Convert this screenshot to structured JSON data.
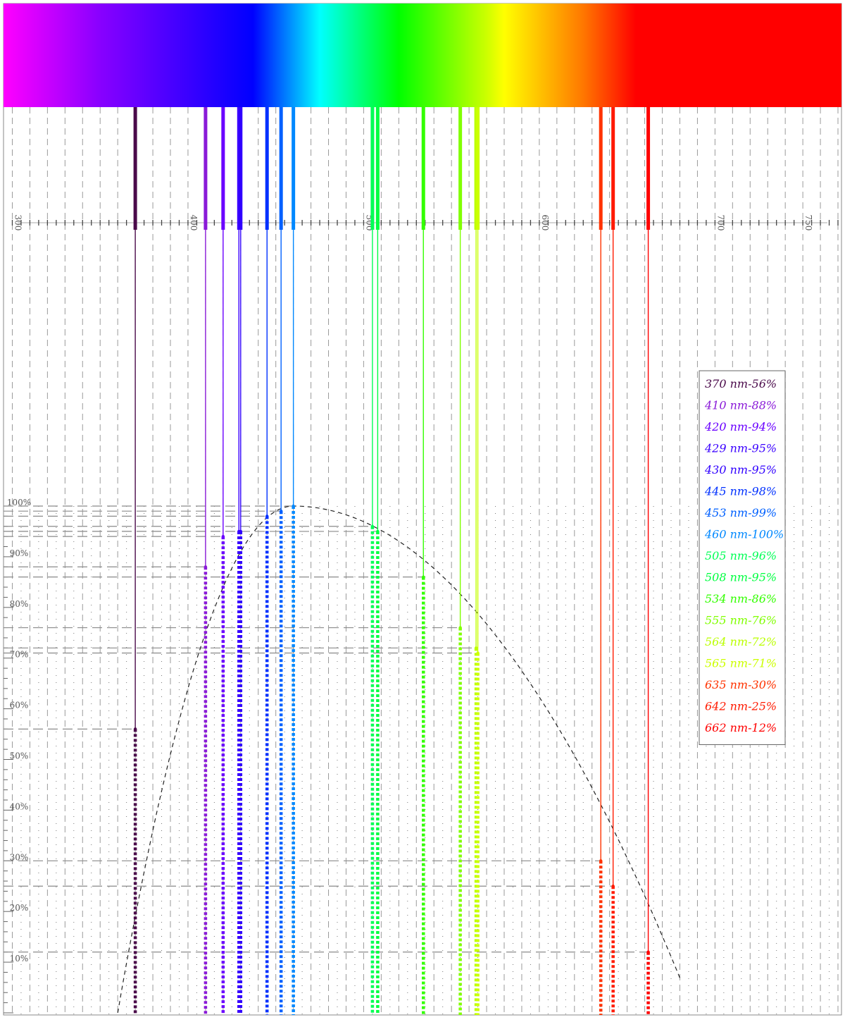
{
  "chart_data": {
    "type": "line",
    "title": "",
    "xlabel": "",
    "ylabel": "",
    "xlim": [
      295,
      772
    ],
    "ylim": [
      0,
      100
    ],
    "grid": true,
    "legend_position": "right",
    "x_ticks": [
      {
        "value": 300,
        "label": "300"
      },
      {
        "value": 400,
        "label": "400"
      },
      {
        "value": 500,
        "label": "500"
      },
      {
        "value": 600,
        "label": "600"
      },
      {
        "value": 700,
        "label": "700"
      },
      {
        "value": 750,
        "label": "750"
      }
    ],
    "y_ticks": [
      {
        "value": 10,
        "label": "10%"
      },
      {
        "value": 20,
        "label": "20%"
      },
      {
        "value": 30,
        "label": "30%"
      },
      {
        "value": 40,
        "label": "40%"
      },
      {
        "value": 50,
        "label": "50%"
      },
      {
        "value": 60,
        "label": "60%"
      },
      {
        "value": 70,
        "label": "70%"
      },
      {
        "value": 80,
        "label": "80%"
      },
      {
        "value": 90,
        "label": "90%"
      },
      {
        "value": 100,
        "label": "100%"
      }
    ],
    "spectrum_stops": [
      {
        "nm": 295,
        "color": "#ff00ff"
      },
      {
        "nm": 350,
        "color": "#8800ff"
      },
      {
        "nm": 437,
        "color": "#0000ff"
      },
      {
        "nm": 475,
        "color": "#00ffff"
      },
      {
        "nm": 520,
        "color": "#00ff00"
      },
      {
        "nm": 570,
        "color": "#ccff00"
      },
      {
        "nm": 580,
        "color": "#ffff00"
      },
      {
        "nm": 625,
        "color": "#ff7700"
      },
      {
        "nm": 655,
        "color": "#ff0000"
      },
      {
        "nm": 772,
        "color": "#ff0000"
      }
    ],
    "curve": {
      "peak_nm": 460,
      "width_left": 100,
      "width_right": 228,
      "x_start": 327,
      "x_end": 680
    },
    "series": [
      {
        "nm": 370,
        "percent": 56,
        "label": "370 nm-56%",
        "color": "#4a0a4a"
      },
      {
        "nm": 410,
        "percent": 88,
        "label": "410 nm-88%",
        "color": "#8a1ad8"
      },
      {
        "nm": 420,
        "percent": 94,
        "label": "420 nm-94%",
        "color": "#6a00ff"
      },
      {
        "nm": 429,
        "percent": 95,
        "label": "429 nm-95%",
        "color": "#3a00ff"
      },
      {
        "nm": 430,
        "percent": 95,
        "label": "430 nm-95%",
        "color": "#3000ff"
      },
      {
        "nm": 445,
        "percent": 98,
        "label": "445 nm-98%",
        "color": "#0030ff"
      },
      {
        "nm": 453,
        "percent": 99,
        "label": "453 nm-99%",
        "color": "#0060ff"
      },
      {
        "nm": 460,
        "percent": 100,
        "label": "460 nm-100%",
        "color": "#0088ff"
      },
      {
        "nm": 505,
        "percent": 96,
        "label": "505 nm-96%",
        "color": "#00ff55"
      },
      {
        "nm": 508,
        "percent": 95,
        "label": "508 nm-95%",
        "color": "#00ff40"
      },
      {
        "nm": 534,
        "percent": 86,
        "label": "534 nm-86%",
        "color": "#33ff00"
      },
      {
        "nm": 555,
        "percent": 76,
        "label": "555 nm-76%",
        "color": "#80ff00"
      },
      {
        "nm": 564,
        "percent": 72,
        "label": "564 nm-72%",
        "color": "#bbff00"
      },
      {
        "nm": 565,
        "percent": 71,
        "label": "565 nm-71%",
        "color": "#ccff00"
      },
      {
        "nm": 635,
        "percent": 30,
        "label": "635 nm-30%",
        "color": "#ff3300"
      },
      {
        "nm": 642,
        "percent": 25,
        "label": "642 nm-25%",
        "color": "#ff1a00"
      },
      {
        "nm": 662,
        "percent": 12,
        "label": "662 nm-12%",
        "color": "#ff0000"
      }
    ]
  }
}
